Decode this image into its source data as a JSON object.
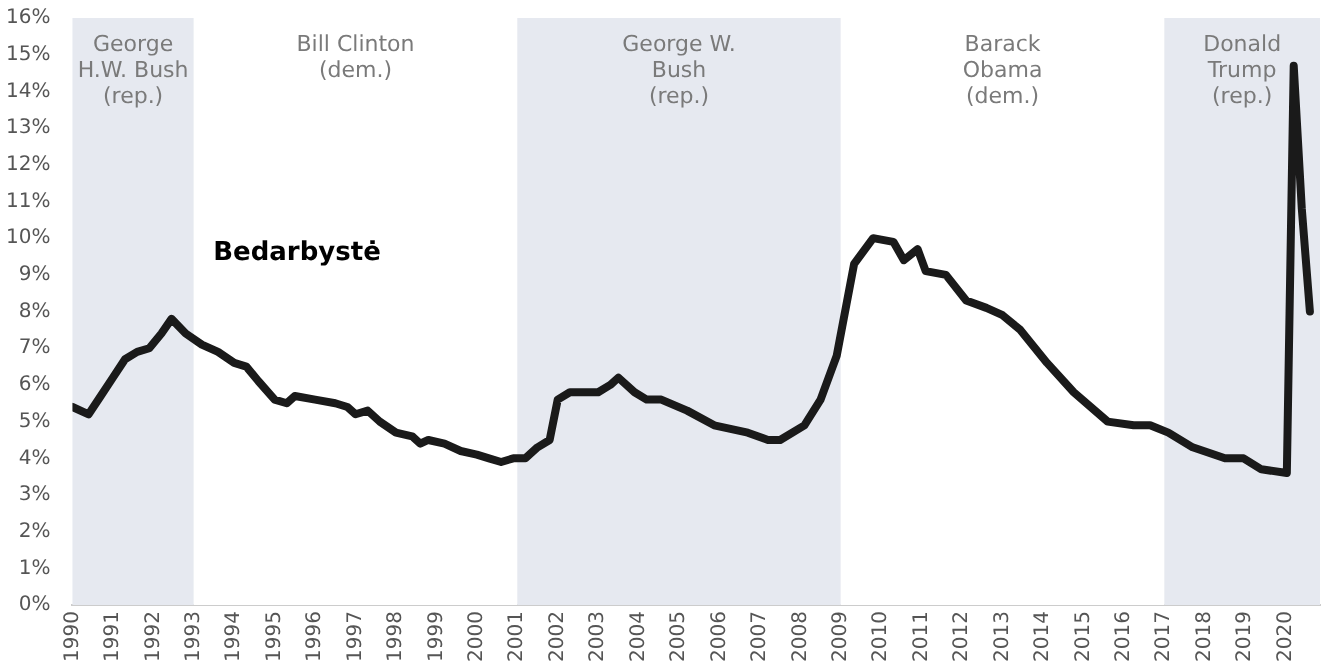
{
  "chart_data": {
    "type": "line",
    "title": "Bedarbystė",
    "x": [
      1990.0,
      1990.4,
      1990.7,
      1991.0,
      1991.3,
      1991.6,
      1991.9,
      1992.2,
      1992.45,
      1992.8,
      1993.2,
      1993.6,
      1994.0,
      1994.3,
      1994.6,
      1995.0,
      1995.3,
      1995.5,
      1996.0,
      1996.5,
      1996.8,
      1997.0,
      1997.3,
      1997.6,
      1998.0,
      1998.4,
      1998.6,
      1998.8,
      1999.2,
      1999.6,
      2000.0,
      2000.3,
      2000.6,
      2000.9,
      2001.2,
      2001.5,
      2001.8,
      2002.0,
      2002.3,
      2002.7,
      2003.0,
      2003.3,
      2003.5,
      2003.9,
      2004.2,
      2004.56,
      2005.2,
      2005.87,
      2006.7,
      2007.2,
      2007.5,
      2008.1,
      2008.5,
      2008.9,
      2009.33,
      2009.8,
      2010.3,
      2010.56,
      2010.9,
      2011.1,
      2011.6,
      2012.1,
      2012.6,
      2013.0,
      2013.44,
      2014.1,
      2014.76,
      2015.6,
      2016.24,
      2016.65,
      2017.1,
      2017.7,
      2018.5,
      2018.96,
      2019.4,
      2020.03,
      2020.2,
      2020.4,
      2020.6
    ],
    "series": [
      {
        "color": "#1a1a1a",
        "values": [
          5.4,
          5.2,
          5.7,
          6.2,
          6.7,
          6.9,
          7.0,
          7.4,
          7.8,
          7.4,
          7.1,
          6.9,
          6.6,
          6.5,
          6.1,
          5.6,
          5.5,
          5.7,
          5.6,
          5.5,
          5.4,
          5.2,
          5.3,
          5.0,
          4.7,
          4.6,
          4.4,
          4.5,
          4.4,
          4.2,
          4.1,
          4.0,
          3.9,
          4.0,
          4.0,
          4.3,
          4.5,
          5.6,
          5.8,
          5.8,
          5.8,
          6.0,
          6.2,
          5.8,
          5.6,
          5.6,
          5.3,
          4.9,
          4.7,
          4.5,
          4.5,
          4.9,
          5.6,
          6.8,
          9.3,
          10.0,
          9.9,
          9.4,
          9.7,
          9.1,
          9.0,
          8.3,
          8.1,
          7.9,
          7.5,
          6.6,
          5.8,
          5.0,
          4.9,
          4.9,
          4.7,
          4.3,
          4.0,
          4.0,
          3.7,
          3.6,
          14.7,
          10.8,
          8.0
        ]
      }
    ],
    "xlim": [
      1990,
      2020.85
    ],
    "xticks": [
      1990,
      1991,
      1992,
      1993,
      1994,
      1995,
      1996,
      1997,
      1998,
      1999,
      2000,
      2001,
      2002,
      2003,
      2004,
      2005,
      2006,
      2007,
      2008,
      2009,
      2010,
      2011,
      2012,
      2013,
      2014,
      2015,
      2016,
      2017,
      2018,
      2019,
      2020
    ],
    "ylim": [
      0,
      16
    ],
    "yticks": [
      {
        "value": 0,
        "label": "0%"
      },
      {
        "value": 1,
        "label": "1%"
      },
      {
        "value": 2,
        "label": "2%"
      },
      {
        "value": 3,
        "label": "3%"
      },
      {
        "value": 4,
        "label": "4%"
      },
      {
        "value": 5,
        "label": "5%"
      },
      {
        "value": 6,
        "label": "6%"
      },
      {
        "value": 7,
        "label": "7%"
      },
      {
        "value": 8,
        "label": "8%"
      },
      {
        "value": 9,
        "label": "9%"
      },
      {
        "value": 10,
        "label": "10%"
      },
      {
        "value": 11,
        "label": "11%"
      },
      {
        "value": 12,
        "label": "12%"
      },
      {
        "value": 13,
        "label": "13%"
      },
      {
        "value": 14,
        "label": "14%"
      },
      {
        "value": 15,
        "label": "15%"
      },
      {
        "value": 16,
        "label": "16%"
      }
    ],
    "bands": [
      {
        "axis": "x",
        "from": 1990,
        "to": 1993,
        "label": "George\nH.W. Bush\n(rep.)",
        "color": "#e6e9f0"
      },
      {
        "axis": "x",
        "from": 1993,
        "to": 2001,
        "label": "Bill Clinton\n(dem.)",
        "color": "#ffffff"
      },
      {
        "axis": "x",
        "from": 2001,
        "to": 2009,
        "label": "George W.\nBush\n(rep.)",
        "color": "#e6e9f0"
      },
      {
        "axis": "x",
        "from": 2009,
        "to": 2017,
        "label": "Barack\nObama\n(dem.)",
        "color": "#ffffff"
      },
      {
        "axis": "x",
        "from": 2017,
        "to": 2020.85,
        "label": "Donald\nTrump\n(rep.)",
        "color": "#e6e9f0"
      }
    ],
    "grid": false,
    "legend": false,
    "marker": "none",
    "line_style": "solid"
  }
}
